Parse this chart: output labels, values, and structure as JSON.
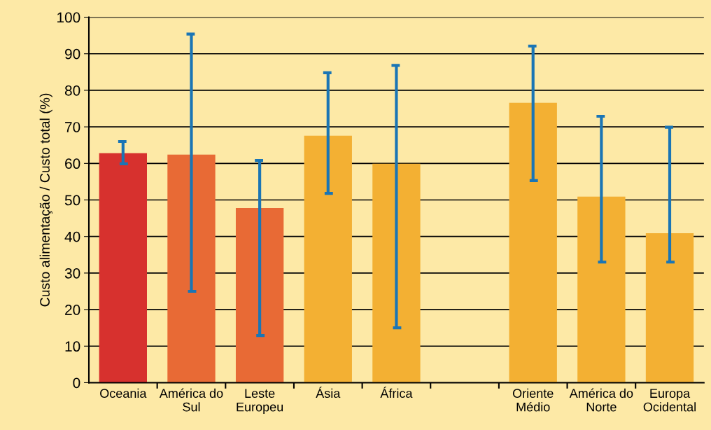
{
  "chart_data": {
    "type": "bar",
    "ylabel": "Custo alimentação / Custo total (%)",
    "categories": [
      "Oceania",
      "América do\nSul",
      "Leste\nEuropeu",
      "Ásia",
      "África",
      null,
      "Oriente\nMédio",
      "América do\nNorte",
      "Europa\nOcidental"
    ],
    "values": [
      62.8,
      62.4,
      47.8,
      67.6,
      59.9,
      null,
      76.6,
      50.9,
      40.9
    ],
    "colors": [
      "#d7312e",
      "#e86a35",
      "#e86a35",
      "#f3b033",
      "#f3b033",
      "#f3b033",
      "#f3b033",
      "#f3b033",
      "#f3b033"
    ],
    "errors": [
      [
        59.9,
        66.0
      ],
      [
        25.0,
        95.4
      ],
      [
        12.9,
        60.8
      ],
      [
        51.8,
        84.8
      ],
      [
        15.0,
        86.8
      ],
      null,
      [
        55.3,
        92.1
      ],
      [
        33.0,
        72.9
      ],
      [
        33.0,
        69.9
      ]
    ],
    "ylim": [
      0,
      100
    ],
    "yticks": [
      0,
      10,
      20,
      30,
      40,
      50,
      60,
      70,
      80,
      90,
      100
    ],
    "grid": "y"
  }
}
